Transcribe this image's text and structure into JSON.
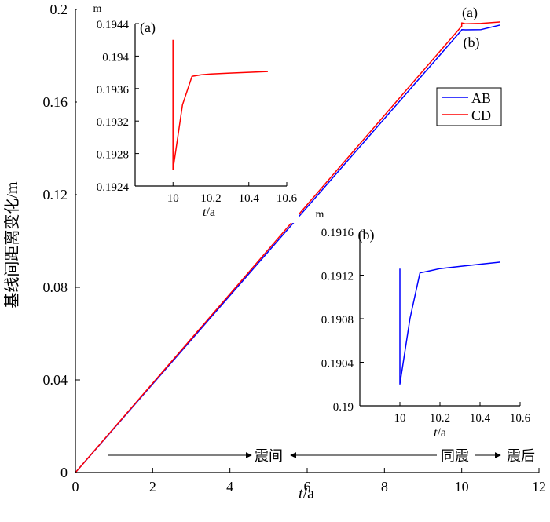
{
  "colors": {
    "AB": "#0000ff",
    "CD": "#ff0000"
  },
  "chart_data": [
    {
      "id": "main",
      "type": "line",
      "ylabel": "基线间距离变化/m",
      "xlabel_italic": "t",
      "xlabel_unit": "/a",
      "xlim": [
        0,
        12
      ],
      "ylim": [
        0,
        0.2
      ],
      "x_ticks": [
        0,
        2,
        4,
        6,
        8,
        10,
        12
      ],
      "y_ticks": [
        0,
        0.04,
        0.08,
        0.12,
        0.16,
        0.2
      ],
      "x_tick_labels": [
        "0",
        "2",
        "4",
        "6",
        "8",
        "10",
        "12"
      ],
      "y_tick_labels": [
        "0",
        "0.04",
        "0.08",
        "0.12",
        "0.16",
        "0.2"
      ],
      "legend": {
        "placement": "right",
        "entries": [
          "AB",
          "CD"
        ]
      },
      "series": [
        {
          "name": "AB",
          "color": "#0000ff",
          "x": [
            0,
            10,
            10.0,
            10.1,
            10.5,
            11
          ],
          "y": [
            0,
            0.1911,
            0.19125,
            0.1912,
            0.1913,
            0.1933
          ]
        },
        {
          "name": "CD",
          "color": "#ff0000",
          "x": [
            0,
            10,
            10.0,
            10.1,
            10.5,
            11
          ],
          "y": [
            0,
            0.1928,
            0.1942,
            0.1938,
            0.194,
            0.1946
          ]
        }
      ],
      "series_labels": [
        {
          "text": "(a)",
          "target": "CD"
        },
        {
          "text": "(b)",
          "target": "AB"
        }
      ],
      "annotations": {
        "interseismic": "震间",
        "coseismic": "同震",
        "postseismic": "震后"
      }
    },
    {
      "id": "inset-a",
      "type": "line",
      "panel_label": "(a)",
      "yunit": "m",
      "xlabel_italic": "t",
      "xlabel_unit": "/a",
      "xlim": [
        9.8,
        10.6
      ],
      "ylim": [
        0.1924,
        0.1944
      ],
      "x_ticks": [
        10,
        10.2,
        10.4,
        10.6
      ],
      "x_tick_labels": [
        "10",
        "10.2",
        "10.4",
        "10.6"
      ],
      "y_ticks": [
        0.1924,
        0.1928,
        0.1932,
        0.1936,
        0.194,
        0.1944
      ],
      "y_tick_labels": [
        "0.1924",
        "0.1928",
        "0.1932",
        "0.1936",
        "0.194",
        "0.1944"
      ],
      "series": [
        {
          "name": "CD",
          "color": "#ff0000",
          "x": [
            10.0,
            10.0,
            10.05,
            10.1,
            10.15,
            10.2,
            10.3,
            10.4,
            10.5
          ],
          "y": [
            0.1942,
            0.1926,
            0.1934,
            0.19375,
            0.19377,
            0.19378,
            0.19379,
            0.1938,
            0.19381
          ]
        }
      ]
    },
    {
      "id": "inset-b",
      "type": "line",
      "panel_label": "(b)",
      "yunit": "m",
      "xlabel_italic": "t",
      "xlabel_unit": "/a",
      "xlim": [
        9.8,
        10.6
      ],
      "ylim": [
        0.19,
        0.1916
      ],
      "x_ticks": [
        10,
        10.2,
        10.4,
        10.6
      ],
      "x_tick_labels": [
        "10",
        "10.2",
        "10.4",
        "10.6"
      ],
      "y_ticks": [
        0.19,
        0.1904,
        0.1908,
        0.1912,
        0.1916
      ],
      "y_tick_labels": [
        "0.19",
        "0.1904",
        "0.1908",
        "0.1912",
        "0.1916"
      ],
      "series": [
        {
          "name": "AB",
          "color": "#0000ff",
          "x": [
            10.0,
            10.0,
            10.05,
            10.1,
            10.15,
            10.2,
            10.3,
            10.4,
            10.5
          ],
          "y": [
            0.19126,
            0.1902,
            0.1908,
            0.19122,
            0.19124,
            0.19126,
            0.19128,
            0.1913,
            0.19132
          ]
        }
      ]
    }
  ]
}
